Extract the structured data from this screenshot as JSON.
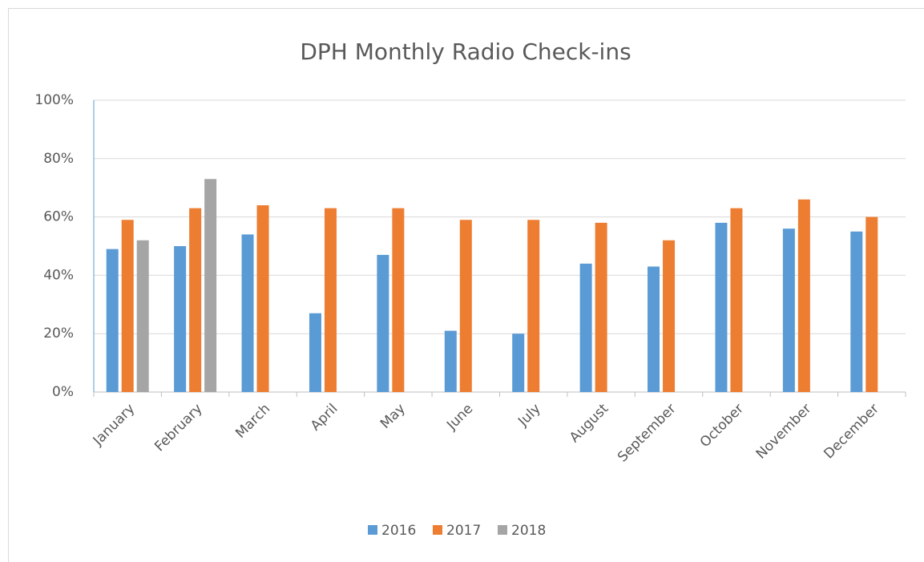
{
  "chart_data": {
    "type": "bar",
    "title": "DPH Monthly Radio Check-ins",
    "categories": [
      "January",
      "February",
      "March",
      "April",
      "May",
      "June",
      "July",
      "August",
      "September",
      "October",
      "November",
      "December"
    ],
    "series": [
      {
        "name": "2016",
        "color": "#5b9bd5",
        "values": [
          49,
          50,
          54,
          27,
          47,
          21,
          20,
          44,
          43,
          58,
          56,
          55
        ]
      },
      {
        "name": "2017",
        "color": "#ed7d31",
        "values": [
          59,
          63,
          64,
          63,
          63,
          59,
          59,
          58,
          52,
          63,
          66,
          60
        ]
      },
      {
        "name": "2018",
        "color": "#a5a5a5",
        "values": [
          52,
          73,
          null,
          null,
          null,
          null,
          null,
          null,
          null,
          null,
          null,
          null
        ]
      }
    ],
    "ylim": [
      0,
      100
    ],
    "yticks": [
      {
        "value": 0,
        "label": "0%"
      },
      {
        "value": 20,
        "label": "20%"
      },
      {
        "value": 40,
        "label": "40%"
      },
      {
        "value": 60,
        "label": "60%"
      },
      {
        "value": 80,
        "label": "80%"
      },
      {
        "value": 100,
        "label": "100%"
      }
    ],
    "grid": true,
    "legend": "bottom"
  }
}
